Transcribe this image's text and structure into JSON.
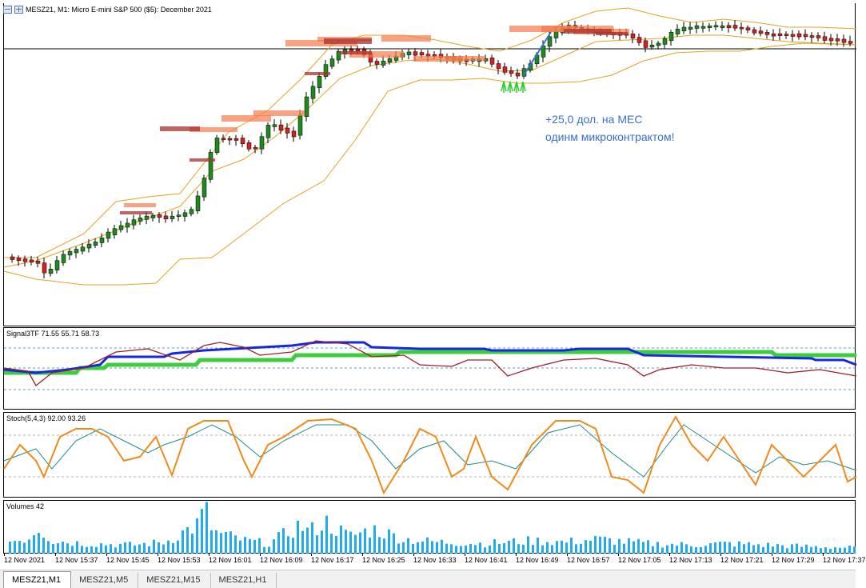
{
  "header": {
    "title": "MESZ21, M1:  Micro E-mini S&P 500 ($5): December 2021"
  },
  "annotation": {
    "line1": "+25,0 дол. на МЕС",
    "line2": "одинм микроконтрактом!"
  },
  "indicators": {
    "signal_label": "Signal3TF 71.55 55.71 58.73",
    "stoch_label": "Stoch(5,4,3) 92.00 93.26",
    "volume_label": "Volumes 42"
  },
  "colors": {
    "bull": "#1e8a1e",
    "bear": "#d42020",
    "bollinger": "#e8a020",
    "zone": "#f47a4a",
    "zone_dark": "#a83030",
    "signal_blue": "#1428e0",
    "signal_green": "#3ccc3c",
    "signal_red": "#a02020",
    "stoch_main": "#f08a18",
    "stoch_signal": "#1b8a8a",
    "volume": "#22aaf0",
    "arrows": "#28d028"
  },
  "icons": [
    "window-icon",
    "window-split-icon",
    "up-arrow-icon"
  ],
  "time_axis": {
    "labels": [
      "12 Nov 2021",
      "12 Nov 15:37",
      "12 Nov 15:45",
      "12 Nov 15:53",
      "12 Nov 16:01",
      "12 Nov 16:09",
      "12 Nov 16:17",
      "12 Nov 16:25",
      "12 Nov 16:33",
      "12 Nov 16:41",
      "12 Nov 16:49",
      "12 Nov 16:57",
      "12 Nov 17:05",
      "12 Nov 17:13",
      "12 Nov 17:21",
      "12 Nov 17:29",
      "12 Nov 17:37"
    ]
  },
  "tabs": [
    {
      "label": "MESZ21,M1",
      "active": true
    },
    {
      "label": "MESZ21,M5",
      "active": false
    },
    {
      "label": "MESZ21,M15",
      "active": false
    },
    {
      "label": "MESZ21,H1",
      "active": false
    }
  ]
}
